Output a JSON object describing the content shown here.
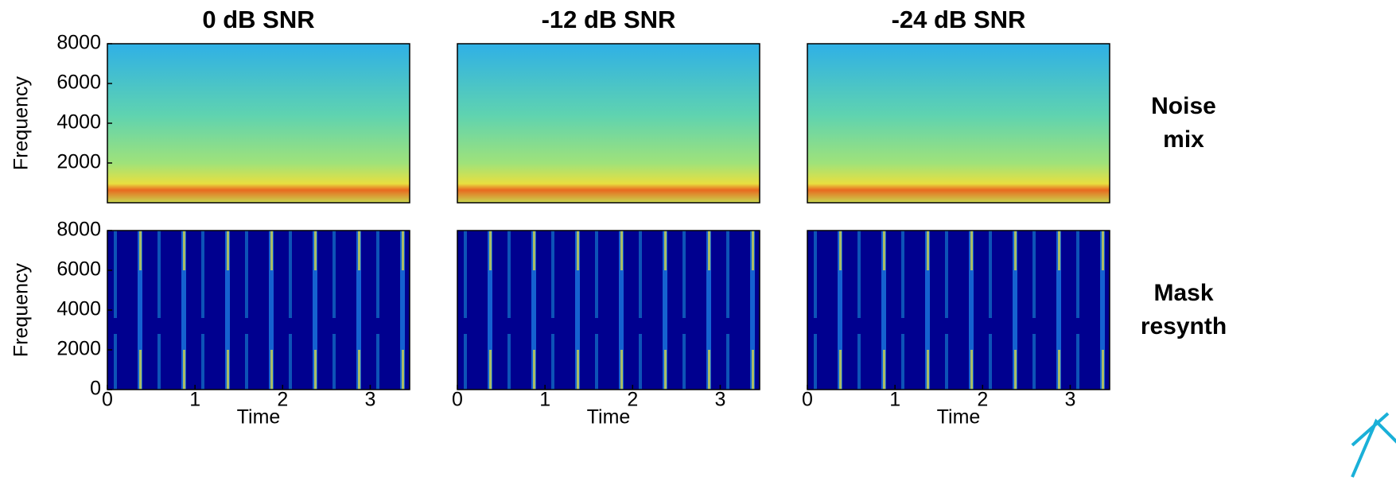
{
  "chart_data": [
    {
      "type": "spectrogram",
      "title": "0 dB SNR",
      "ylabel": "Frequency",
      "xlim": [
        0,
        3.45
      ],
      "ylim": [
        0,
        8000
      ],
      "yticks": [
        2000,
        4000,
        6000,
        8000
      ]
    },
    {
      "type": "spectrogram",
      "title": "-12 dB SNR",
      "xlim": [
        0,
        3.45
      ],
      "ylim": [
        0,
        8000
      ]
    },
    {
      "type": "spectrogram",
      "title": "-24 dB SNR",
      "annotation": "Noise mix",
      "xlim": [
        0,
        3.45
      ],
      "ylim": [
        0,
        8000
      ]
    },
    {
      "type": "spectrogram",
      "ylabel": "Frequency",
      "xlabel": "Time",
      "xlim": [
        0,
        3.45
      ],
      "ylim": [
        0,
        8000
      ],
      "xticks": [
        0,
        1,
        2,
        3
      ],
      "yticks": [
        0,
        2000,
        4000,
        6000,
        8000
      ]
    },
    {
      "type": "spectrogram",
      "xlabel": "Time",
      "xlim": [
        0,
        3.45
      ],
      "ylim": [
        0,
        8000
      ],
      "xticks": [
        0,
        1,
        2,
        3
      ]
    },
    {
      "type": "spectrogram",
      "xlabel": "Time",
      "annotation": "Mask resynth",
      "xlim": [
        0,
        3.45
      ],
      "ylim": [
        0,
        8000
      ],
      "xticks": [
        0,
        1,
        2,
        3
      ]
    }
  ]
}
